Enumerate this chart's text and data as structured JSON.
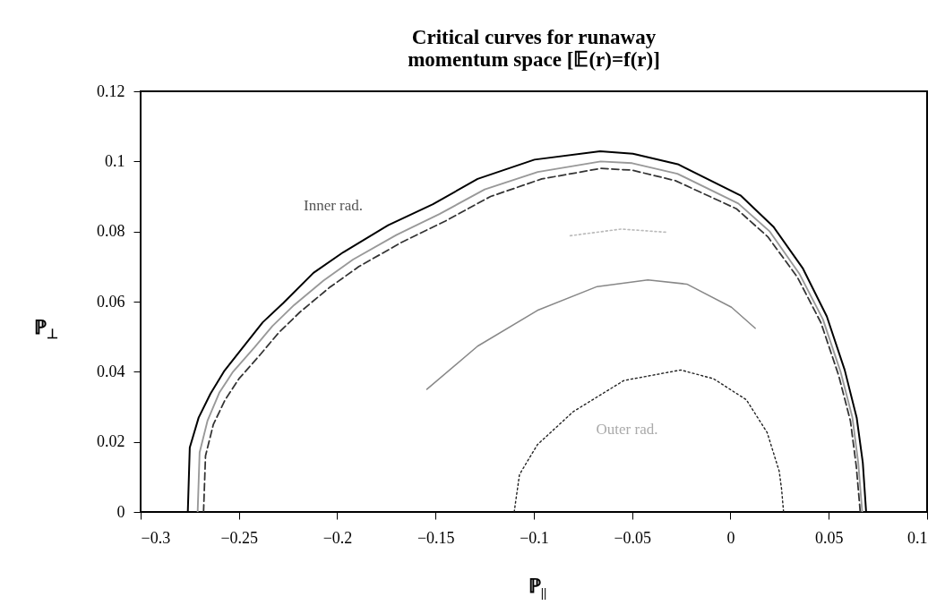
{
  "chart_data": {
    "type": "line",
    "title": [
      "Critical curves for runaway",
      "momentum space [𝔼(r)=f(r)]"
    ],
    "xlabel": "ℙ$_{||}$",
    "ylabel": "ℙ$_{⊥}$",
    "xlim": [
      -0.3,
      0.1
    ],
    "xticks": [
      -0.3,
      -0.25,
      -0.2,
      -0.15,
      -0.1,
      -0.05,
      0,
      0.05,
      0.1
    ],
    "ylim": [
      0,
      0.12
    ],
    "yticks": [
      0,
      0.02,
      0.04,
      0.06,
      0.08,
      0.1,
      0.12
    ],
    "grid": false,
    "legend": false,
    "marker": "none",
    "annotations": [
      "Inner rad.",
      "Outer rad."
    ],
    "series": [
      {
        "color": "#000000",
        "line_style": "solid",
        "x": [
          -0.276,
          -0.275,
          -0.2705,
          -0.2645,
          -0.2576,
          -0.2462,
          -0.2379,
          -0.2273,
          -0.2121,
          -0.1969,
          -0.1741,
          -0.1513,
          -0.1286,
          -0.0997,
          -0.0663,
          -0.0496,
          -0.0268,
          0.0051,
          0.0218,
          0.0369,
          0.049,
          0.0581,
          0.0642,
          0.0673,
          0.069
        ],
        "values": [
          0,
          0.0184,
          0.0269,
          0.0337,
          0.0401,
          0.0482,
          0.0541,
          0.0597,
          0.0682,
          0.0741,
          0.0818,
          0.0878,
          0.095,
          0.1005,
          0.1029,
          0.1022,
          0.0992,
          0.0903,
          0.0814,
          0.0694,
          0.0558,
          0.0405,
          0.0269,
          0.0141,
          0
        ]
      },
      {
        "color": "#999999",
        "line_style": "solid",
        "x": [
          -0.271,
          -0.27,
          -0.266,
          -0.26,
          -0.253,
          -0.242,
          -0.233,
          -0.222,
          -0.207,
          -0.192,
          -0.17,
          -0.148,
          -0.125,
          -0.098,
          -0.066,
          -0.05,
          -0.027,
          0.004,
          0.02,
          0.035,
          0.047,
          0.056,
          0.062,
          0.065,
          0.067
        ],
        "values": [
          0,
          0.017,
          0.026,
          0.034,
          0.04,
          0.047,
          0.053,
          0.059,
          0.066,
          0.072,
          0.079,
          0.085,
          0.092,
          0.097,
          0.1,
          0.0995,
          0.0965,
          0.088,
          0.08,
          0.068,
          0.055,
          0.04,
          0.027,
          0.014,
          0
        ]
      },
      {
        "color": "#333333",
        "line_style": "dashed",
        "x": [
          -0.268,
          -0.267,
          -0.263,
          -0.257,
          -0.25,
          -0.239,
          -0.23,
          -0.219,
          -0.204,
          -0.189,
          -0.167,
          -0.145,
          -0.122,
          -0.096,
          -0.066,
          -0.05,
          -0.028,
          0.003,
          0.019,
          0.034,
          0.046,
          0.055,
          0.061,
          0.064,
          0.066
        ],
        "values": [
          0,
          0.016,
          0.025,
          0.032,
          0.038,
          0.045,
          0.051,
          0.057,
          0.064,
          0.07,
          0.077,
          0.083,
          0.09,
          0.095,
          0.098,
          0.0975,
          0.0945,
          0.0865,
          0.0785,
          0.067,
          0.054,
          0.039,
          0.026,
          0.013,
          0
        ]
      },
      {
        "color": "#bbbbbb",
        "line_style": "dotted",
        "x": [
          -0.0815,
          -0.0556,
          -0.0328
        ],
        "values": [
          0.0788,
          0.0807,
          0.0798
        ]
      },
      {
        "color": "#888888",
        "line_style": "solid",
        "x": [
          -0.1544,
          -0.1286,
          -0.0982,
          -0.0678,
          -0.042,
          -0.0222,
          0.0005,
          0.0126
        ],
        "values": [
          0.035,
          0.0473,
          0.0575,
          0.0643,
          0.0662,
          0.065,
          0.0584,
          0.0524
        ]
      },
      {
        "color": "#222222",
        "line_style": "dotted",
        "x": [
          -0.11,
          -0.1073,
          -0.0982,
          -0.08,
          -0.0542,
          -0.0253,
          -0.0086,
          0.0081,
          0.0187,
          0.0248,
          0.026,
          0.027
        ],
        "values": [
          0,
          0.0107,
          0.0192,
          0.0286,
          0.0375,
          0.0405,
          0.038,
          0.032,
          0.0226,
          0.0116,
          0.0065,
          0
        ]
      }
    ]
  }
}
